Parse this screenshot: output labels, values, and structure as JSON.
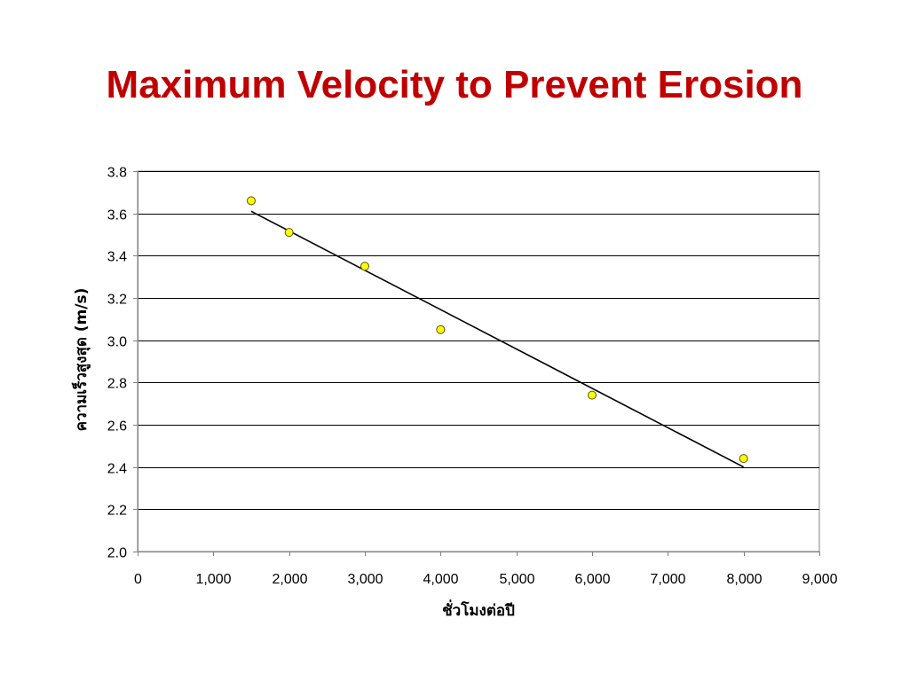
{
  "slide": {
    "title": "Maximum Velocity to Prevent Erosion"
  },
  "chart_data": {
    "type": "scatter",
    "title": "Maximum Velocity to Prevent Erosion",
    "xlabel": "ชั่วโมงต่อปี",
    "ylabel": "ความเร็วสูงสุด (m/s)",
    "xlim": [
      0,
      9000
    ],
    "ylim": [
      2.0,
      3.8
    ],
    "x_ticks": [
      0,
      1000,
      2000,
      3000,
      4000,
      5000,
      6000,
      7000,
      8000,
      9000
    ],
    "x_tick_labels": [
      "0",
      "1,000",
      "2,000",
      "3,000",
      "4,000",
      "5,000",
      "6,000",
      "7,000",
      "8,000",
      "9,000"
    ],
    "y_ticks": [
      2.0,
      2.2,
      2.4,
      2.6,
      2.8,
      3.0,
      3.2,
      3.4,
      3.6,
      3.8
    ],
    "y_tick_labels": [
      "2.0",
      "2.2",
      "2.4",
      "2.6",
      "2.8",
      "3.0",
      "3.2",
      "3.4",
      "3.6",
      "3.8"
    ],
    "grid": "horizontal",
    "legend": "none",
    "series": [
      {
        "type": "scatter",
        "x": [
          1500,
          2000,
          3000,
          4000,
          6000,
          8000
        ],
        "y": [
          3.66,
          3.51,
          3.35,
          3.05,
          2.74,
          2.44
        ],
        "color": "#ffff00",
        "edge_color": "#555500"
      }
    ],
    "trendline": {
      "type": "linear",
      "x": [
        1500,
        8000
      ],
      "y": [
        3.61,
        2.4
      ],
      "color": "#000000"
    },
    "colors": {
      "title": "#c00000",
      "grid": "#000000",
      "axis": "#808080"
    }
  }
}
